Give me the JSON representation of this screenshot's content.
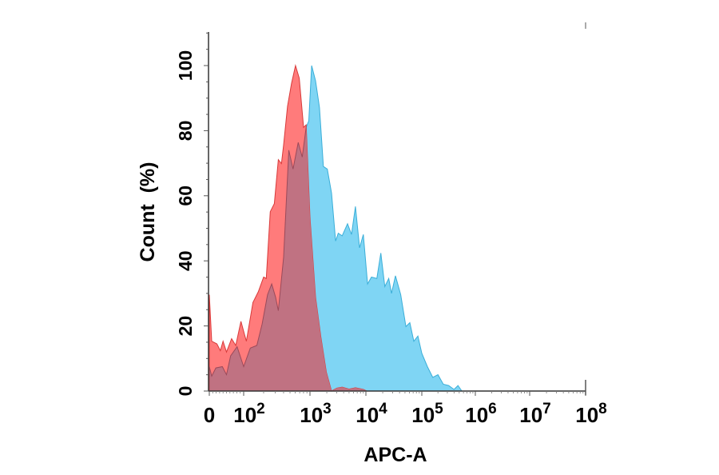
{
  "chart_data": {
    "type": "area",
    "title": "",
    "xlabel": "APC-A",
    "ylabel": "Count  (%)",
    "x_scale": "biexponential",
    "xlim": [
      0,
      100000000
    ],
    "ylim": [
      0,
      110
    ],
    "x_ticks": [
      {
        "value": 0,
        "base": "0",
        "exp": ""
      },
      {
        "value": 100,
        "base": "10",
        "exp": "2"
      },
      {
        "value": 1000,
        "base": "10",
        "exp": "3"
      },
      {
        "value": 10000,
        "base": "10",
        "exp": "4"
      },
      {
        "value": 100000,
        "base": "10",
        "exp": "5"
      },
      {
        "value": 1000000,
        "base": "10",
        "exp": "6"
      },
      {
        "value": 10000000,
        "base": "10",
        "exp": "7"
      },
      {
        "value": 100000000,
        "base": "10",
        "exp": "8"
      }
    ],
    "y_ticks": [
      "0",
      "20",
      "40",
      "60",
      "80",
      "100"
    ],
    "grid": false,
    "legend": "none",
    "series": [
      {
        "color": "#7fd5f4",
        "line_color": "#3aaed8",
        "points": [
          [
            0,
            7.5
          ],
          [
            7,
            4.6
          ],
          [
            19,
            7.1
          ],
          [
            38,
            7.5
          ],
          [
            50,
            5
          ],
          [
            62,
            10.8
          ],
          [
            81,
            13.6
          ],
          [
            100,
            7.5
          ],
          [
            126,
            13.2
          ],
          [
            158,
            14
          ],
          [
            190,
            20.6
          ],
          [
            229,
            29.6
          ],
          [
            265,
            32.9
          ],
          [
            303,
            28.8
          ],
          [
            333,
            24.7
          ],
          [
            400,
            41.1
          ],
          [
            480,
            74
          ],
          [
            555,
            68.2
          ],
          [
            665,
            76.4
          ],
          [
            765,
            71.9
          ],
          [
            875,
            81
          ],
          [
            960,
            83
          ],
          [
            1070,
            100
          ],
          [
            1260,
            95.3
          ],
          [
            1480,
            87.1
          ],
          [
            1740,
            69
          ],
          [
            2040,
            68.2
          ],
          [
            2430,
            60.8
          ],
          [
            2870,
            46.1
          ],
          [
            3200,
            48.5
          ],
          [
            3770,
            47.7
          ],
          [
            4700,
            51.4
          ],
          [
            5530,
            48.1
          ],
          [
            6500,
            56.7
          ],
          [
            7700,
            44
          ],
          [
            9000,
            48.1
          ],
          [
            10700,
            32.9
          ],
          [
            12600,
            35
          ],
          [
            15700,
            34.6
          ],
          [
            18500,
            42.4
          ],
          [
            21800,
            32.1
          ],
          [
            25600,
            34.6
          ],
          [
            28700,
            30
          ],
          [
            33800,
            35.4
          ],
          [
            42000,
            29.6
          ],
          [
            52000,
            19.8
          ],
          [
            61000,
            21
          ],
          [
            72000,
            15.3
          ],
          [
            85000,
            16.9
          ],
          [
            100000,
            11.6
          ],
          [
            127000,
            7.5
          ],
          [
            160000,
            4.2
          ],
          [
            200000,
            5
          ],
          [
            252000,
            2.1
          ],
          [
            317000,
            1.7
          ],
          [
            400000,
            0.5
          ],
          [
            475000,
            1.7
          ],
          [
            560000,
            0
          ]
        ]
      },
      {
        "color": "#ff7b7b",
        "line_color": "#d83a3a",
        "points": [
          [
            0,
            29.6
          ],
          [
            7,
            15.3
          ],
          [
            22,
            14.5
          ],
          [
            32,
            12.4
          ],
          [
            40,
            15.3
          ],
          [
            50,
            12
          ],
          [
            65,
            16.1
          ],
          [
            77,
            14
          ],
          [
            92,
            21.4
          ],
          [
            110,
            15.3
          ],
          [
            138,
            27.2
          ],
          [
            166,
            30.5
          ],
          [
            200,
            35
          ],
          [
            219,
            34.6
          ],
          [
            252,
            55.1
          ],
          [
            290,
            57.6
          ],
          [
            333,
            71.1
          ],
          [
            371,
            69.9
          ],
          [
            400,
            75.6
          ],
          [
            459,
            87.5
          ],
          [
            527,
            94.5
          ],
          [
            606,
            100
          ],
          [
            690,
            96.1
          ],
          [
            800,
            81
          ],
          [
            875,
            81.8
          ],
          [
            1000,
            53.4
          ],
          [
            1260,
            28.8
          ],
          [
            1570,
            16.5
          ],
          [
            1960,
            5.8
          ],
          [
            2430,
            0
          ],
          [
            3030,
            0.9
          ],
          [
            3770,
            1.2
          ],
          [
            5000,
            0.6
          ],
          [
            6500,
            1.0
          ],
          [
            9000,
            0.5
          ],
          [
            10300,
            0
          ]
        ]
      }
    ],
    "overlap_color": "#c07282"
  }
}
